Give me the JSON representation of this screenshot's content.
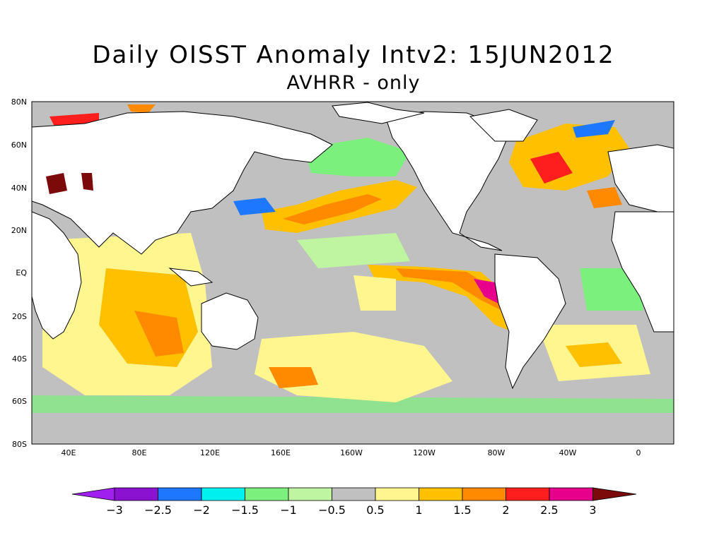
{
  "title": "Daily OISST Anomaly Intv2: 15JUN2012",
  "subtitle": "AVHRR - only",
  "lat_ticks": [
    "80N",
    "60N",
    "40N",
    "20N",
    "EQ",
    "20S",
    "40S",
    "60S",
    "80S"
  ],
  "lon_ticks": [
    "40E",
    "80E",
    "120E",
    "160E",
    "160W",
    "120W",
    "80W",
    "40W",
    "0"
  ],
  "colorbar": {
    "labels": [
      "-3",
      "-2.5",
      "-2",
      "-1.5",
      "-1",
      "-0.5",
      "0.5",
      "1",
      "1.5",
      "2",
      "2.5",
      "3"
    ],
    "colors": [
      "#a020f0",
      "#8a12d0",
      "#1e78ff",
      "#00f0f0",
      "#7cf07c",
      "#bff5a0",
      "#c0c0c0",
      "#fff68f",
      "#ffc000",
      "#ff8a00",
      "#ff1e1e",
      "#e6008c",
      "#7d0a0a"
    ]
  },
  "colors": {
    "land": "#ffffff",
    "coast": "#000000",
    "ice": "#c0c0c0"
  }
}
